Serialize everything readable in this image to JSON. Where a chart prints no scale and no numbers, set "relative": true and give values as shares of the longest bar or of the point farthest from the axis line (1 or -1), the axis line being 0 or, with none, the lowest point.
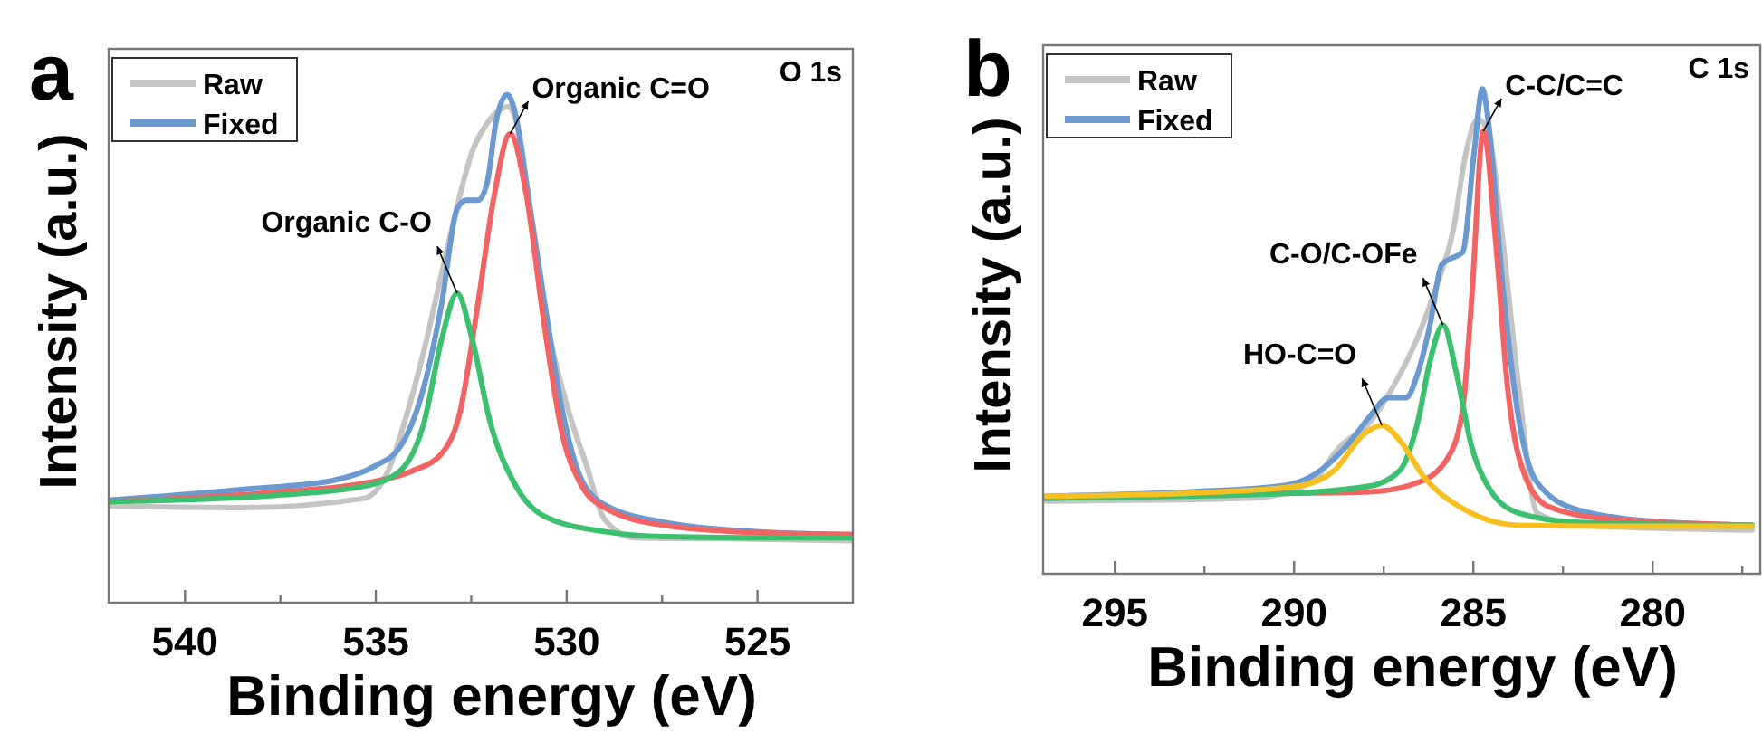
{
  "chart_data": [
    {
      "type": "line",
      "title": "a",
      "xlabel": "Binding energy (eV)",
      "ylabel": "Intensity (a.u.)",
      "relative": true,
      "xlim": [
        542,
        522.5
      ],
      "xticks": [
        540,
        {
          "value": 537.5,
          "label": null
        },
        535,
        {
          "value": 532.5,
          "label": null
        },
        530,
        {
          "value": 527.5,
          "label": null
        },
        525
      ],
      "tick_labels": "x",
      "grid": false,
      "legend": "top left",
      "marker": "none",
      "line_style": "solid",
      "annotations": [
        "O 1s",
        {
          "text": "Organic C=O",
          "x": 531.48,
          "y": 0.923
        },
        {
          "text": "Organic C-O",
          "x": 532.87,
          "y": 0.609
        }
      ],
      "series": [
        {
          "name": "Raw",
          "color": "#c4c4c4",
          "x": [
            541.94,
            538.47,
            535.32,
            534.68,
            534.21,
            533.74,
            533.27,
            532.79,
            532.48,
            532.16,
            531.85,
            531.53,
            531.21,
            530.9,
            530.43,
            529.95,
            529.48,
            529.01,
            528.22,
            525.85,
            522.54
          ],
          "values": [
            0.19,
            0.187,
            0.205,
            0.259,
            0.365,
            0.496,
            0.65,
            0.804,
            0.887,
            0.935,
            0.964,
            0.976,
            0.911,
            0.733,
            0.52,
            0.377,
            0.27,
            0.164,
            0.128,
            0.126,
            0.122
          ]
        },
        {
          "name": "Fixed",
          "color": "#6a9ad0",
          "x": [
            541.94,
            538.47,
            536.1,
            535,
            534.37,
            533.74,
            533.27,
            532.87,
            532.63,
            532.32,
            532.08,
            531.85,
            531.56,
            531.37,
            531.06,
            530.58,
            530.11,
            529.64,
            529.01,
            527.43,
            525.06,
            522.54
          ],
          "values": [
            0.202,
            0.223,
            0.241,
            0.27,
            0.306,
            0.425,
            0.591,
            0.775,
            0.792,
            0.792,
            0.828,
            0.947,
            1,
            0.97,
            0.828,
            0.591,
            0.377,
            0.247,
            0.193,
            0.158,
            0.14,
            0.134
          ]
        },
        {
          "color": "#f26464",
          "x": [
            541.94,
            537.68,
            535.32,
            534.05,
            533.27,
            532.79,
            532.32,
            531.92,
            531.48,
            531.06,
            530.58,
            530.11,
            529.64,
            529.01,
            527.43,
            525.06,
            522.54
          ],
          "values": [
            0.199,
            0.217,
            0.235,
            0.259,
            0.294,
            0.377,
            0.591,
            0.792,
            0.923,
            0.804,
            0.543,
            0.33,
            0.235,
            0.187,
            0.152,
            0.138,
            0.134
          ]
        },
        {
          "color": "#3cc070",
          "x": [
            541.94,
            537.68,
            535.32,
            534.37,
            533.74,
            533.27,
            532.87,
            532.48,
            532,
            531.37,
            530.58,
            529.01,
            527.43,
            525.06,
            522.54
          ],
          "values": [
            0.199,
            0.211,
            0.229,
            0.259,
            0.354,
            0.52,
            0.609,
            0.52,
            0.354,
            0.235,
            0.17,
            0.14,
            0.13,
            0.128,
            0.128
          ]
        }
      ]
    },
    {
      "type": "line",
      "title": "b",
      "xlabel": "Binding energy (eV)",
      "ylabel": "Intensity (a.u.)",
      "relative": true,
      "xlim": [
        297,
        277
      ],
      "xticks": [
        295,
        {
          "value": 292.5,
          "label": null
        },
        290,
        {
          "value": 287.5,
          "label": null
        },
        285,
        {
          "value": 282.5,
          "label": null
        },
        280,
        {
          "value": 277.5,
          "label": null
        }
      ],
      "tick_labels": "x",
      "grid": false,
      "legend": "top left",
      "marker": "none",
      "line_style": "solid",
      "annotations": [
        "C 1s",
        {
          "text": "C-C/C=C",
          "x": 284.72,
          "y": 0.913
        },
        {
          "text": "C-O/C-OFe",
          "x": 285.85,
          "y": 0.513
        },
        {
          "text": "HO-C=O",
          "x": 287.55,
          "y": 0.306
        }
      ],
      "series": [
        {
          "name": "Raw",
          "color": "#c4c4c4",
          "x": [
            296.91,
            291.21,
            289.54,
            288.71,
            287.88,
            287.22,
            286.55,
            286.05,
            285.55,
            285.22,
            284.88,
            284.55,
            284.22,
            283.72,
            283.22,
            282.05,
            277.23
          ],
          "values": [
            0.15,
            0.156,
            0.188,
            0.263,
            0.313,
            0.388,
            0.488,
            0.588,
            0.713,
            0.863,
            0.938,
            0.9,
            0.713,
            0.375,
            0.125,
            0.1,
            0.09
          ]
        },
        {
          "name": "Fixed",
          "color": "#6a9ad0",
          "x": [
            296.91,
            292.87,
            290.37,
            289.54,
            288.54,
            287.88,
            287.38,
            286.88,
            286.55,
            286.21,
            285.88,
            285.63,
            285.3,
            284.97,
            284.75,
            284.55,
            284.22,
            283.72,
            283.22,
            282.05,
            279.56,
            277.23
          ],
          "values": [
            0.16,
            0.169,
            0.181,
            0.2,
            0.263,
            0.325,
            0.363,
            0.363,
            0.413,
            0.513,
            0.638,
            0.65,
            0.663,
            0.875,
            1,
            0.913,
            0.625,
            0.313,
            0.188,
            0.131,
            0.106,
            0.1
          ]
        },
        {
          "color": "#f26464",
          "x": [
            296.91,
            291.21,
            287.88,
            286.55,
            285.72,
            285.3,
            285.05,
            284.72,
            284.38,
            284.05,
            283.55,
            282.89,
            281.22,
            277.23
          ],
          "values": [
            0.156,
            0.165,
            0.169,
            0.188,
            0.238,
            0.338,
            0.563,
            0.913,
            0.688,
            0.388,
            0.2,
            0.138,
            0.113,
            0.1
          ]
        },
        {
          "color": "#3cc070",
          "x": [
            296.91,
            290.37,
            287.88,
            287.05,
            286.55,
            286.21,
            285.85,
            285.47,
            285.05,
            284.55,
            283.72,
            282.05,
            277.23
          ],
          "values": [
            0.156,
            0.165,
            0.181,
            0.213,
            0.313,
            0.438,
            0.513,
            0.413,
            0.263,
            0.175,
            0.125,
            0.106,
            0.1
          ]
        },
        {
          "color": "#f5c020",
          "x": [
            296.91,
            292.04,
            289.88,
            288.88,
            288.05,
            287.55,
            287.05,
            286.38,
            285.38,
            283.72,
            281.22,
            277.23
          ],
          "values": [
            0.16,
            0.169,
            0.181,
            0.213,
            0.288,
            0.306,
            0.275,
            0.2,
            0.138,
            0.1,
            0.098,
            0.098
          ]
        }
      ]
    }
  ]
}
